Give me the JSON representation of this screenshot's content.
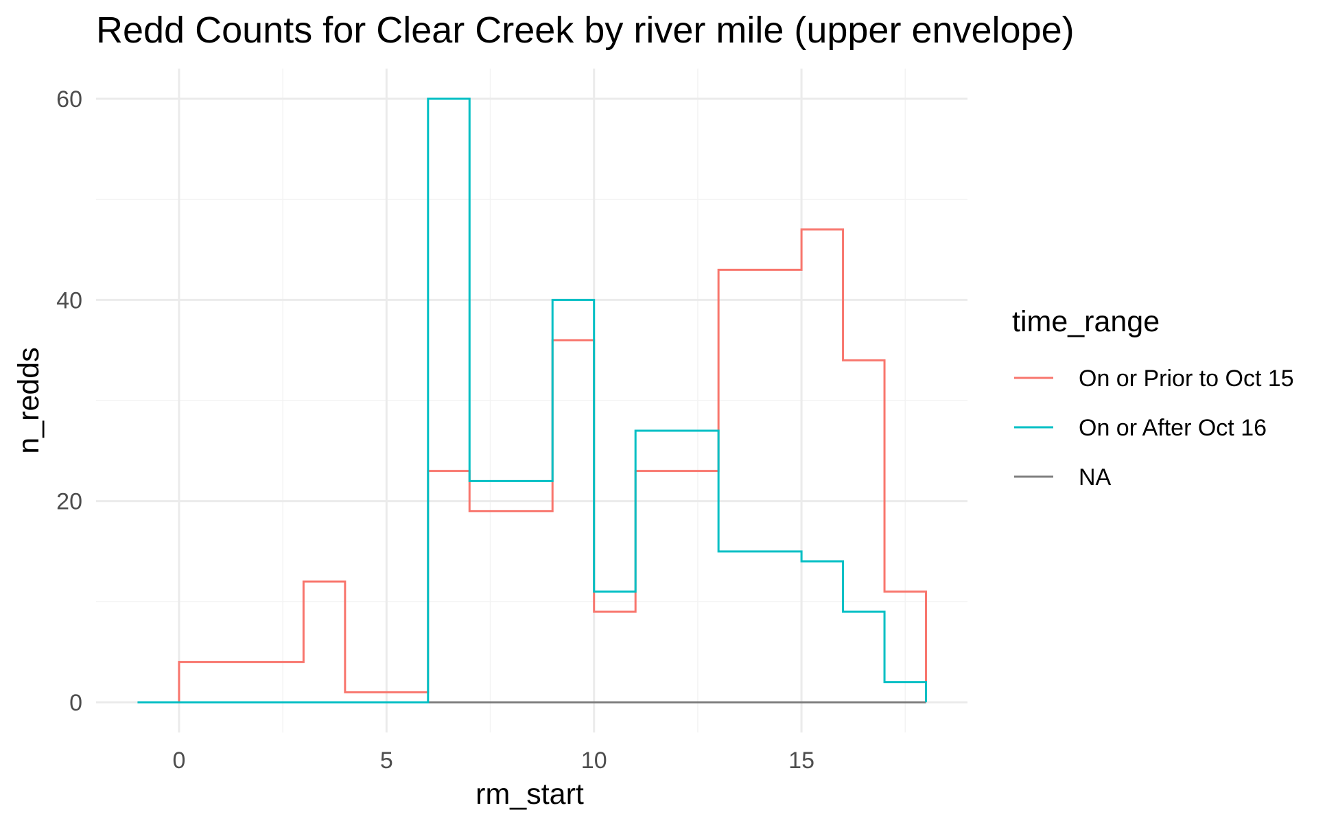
{
  "chart_data": {
    "type": "line",
    "style": "step",
    "title": "Redd Counts for Clear Creek by river mile (upper envelope)",
    "xlabel": "rm_start",
    "ylabel": "n_redds",
    "xlim": [
      -2,
      19
    ],
    "ylim": [
      -3,
      63
    ],
    "x_ticks": [
      0,
      5,
      10,
      15
    ],
    "y_ticks": [
      0,
      20,
      40,
      60
    ],
    "grid": true,
    "legend": {
      "title": "time_range",
      "position": "right"
    },
    "series": [
      {
        "name": "On or Prior to Oct 15",
        "color": "#F8766D",
        "x": [
          -1,
          0,
          3,
          4,
          6,
          7,
          9,
          10,
          11,
          13,
          15,
          16,
          17,
          18
        ],
        "y": [
          0,
          4,
          12,
          1,
          23,
          19,
          36,
          9,
          23,
          43,
          47,
          34,
          11,
          0
        ]
      },
      {
        "name": "On or After Oct 16",
        "color": "#00BFC4",
        "x": [
          -1,
          6,
          7,
          9,
          10,
          11,
          13,
          15,
          16,
          17,
          18
        ],
        "y": [
          0,
          60,
          22,
          40,
          11,
          27,
          15,
          14,
          9,
          2,
          0
        ]
      },
      {
        "name": "NA",
        "color": "#7F7F7F",
        "x": [
          -1,
          18
        ],
        "y": [
          0,
          0
        ]
      }
    ]
  }
}
